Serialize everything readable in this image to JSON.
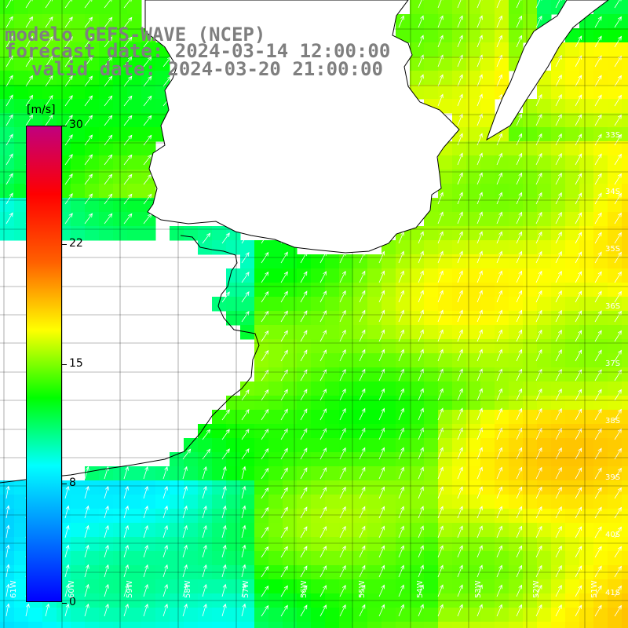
{
  "title": {
    "model": "modelo GEFS-WAVE (NCEP)",
    "forecast": "forecast date: 2024-03-14 12:00:00",
    "valid": "valid date: 2024-03-20 21:00:00"
  },
  "colorbar": {
    "unit": "[m/s]",
    "ticks": [
      "30",
      "22",
      "15",
      "8",
      "0"
    ],
    "gradient": [
      "#c0007f",
      "#ff0000",
      "#ff6000",
      "#ffff00",
      "#00ff00",
      "#00ffff",
      "#0080ff",
      "#0000ff"
    ]
  },
  "map": {
    "lat_labels": [
      "33S",
      "34S",
      "35S",
      "36S",
      "37S",
      "38S",
      "39S",
      "40S",
      "41S"
    ],
    "lon_labels": [
      "61W",
      "60W",
      "59W",
      "58W",
      "57W",
      "56W",
      "55W",
      "54W",
      "53W",
      "52W",
      "51W"
    ],
    "colors": {
      "land": "#ffffff",
      "coast": "#000000",
      "grid": "#000000",
      "arrows": "#ffffff"
    }
  }
}
